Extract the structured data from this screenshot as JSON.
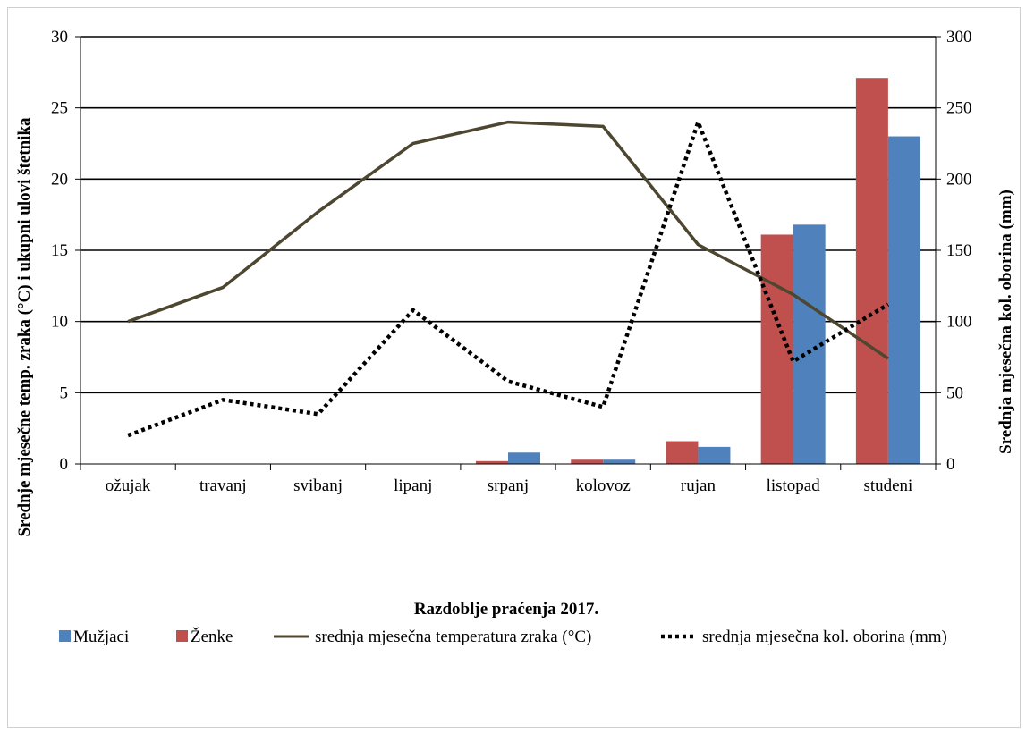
{
  "chart_data": {
    "type": "bar",
    "categories": [
      "ožujak",
      "travanj",
      "svibanj",
      "lipanj",
      "srpanj",
      "kolovoz",
      "rujan",
      "listopad",
      "studeni"
    ],
    "xlabel": "Razdoblje praćenja 2017.",
    "ylabel_left": "Srednje mjesečne temp. zraka (°C) i ukupni ulovi štetnika",
    "ylabel_right": "Srednja mjesečna kol. oborina (mm)",
    "ylim_left": [
      0,
      30
    ],
    "ylim_right": [
      0,
      300
    ],
    "yticks_left": [
      "0",
      "5",
      "10",
      "15",
      "20",
      "25",
      "30"
    ],
    "yticks_right": [
      "0",
      "50",
      "100",
      "150",
      "200",
      "250",
      "300"
    ],
    "grid": true,
    "legend_position": "bottom",
    "series": [
      {
        "name": "Mužjaci",
        "kind": "bar",
        "axis": "left",
        "color": "#4f81bd",
        "values": [
          0,
          0,
          0,
          0,
          0.8,
          0.3,
          1.2,
          16.8,
          23.0
        ]
      },
      {
        "name": "Ženke",
        "kind": "bar",
        "axis": "left",
        "color": "#c0504d",
        "values": [
          0,
          0,
          0,
          0,
          0.2,
          0.3,
          1.6,
          16.1,
          27.1
        ]
      },
      {
        "name": "srednja mjesečna temperatura zraka (°C)",
        "kind": "line",
        "axis": "left",
        "color": "#4d4630",
        "style": "solid",
        "values": [
          10.0,
          12.4,
          17.7,
          22.5,
          24.0,
          23.7,
          15.4,
          11.9,
          7.4
        ]
      },
      {
        "name": "srednja mjesečna kol. oborina (mm)",
        "kind": "line",
        "axis": "right",
        "color": "#000000",
        "style": "dotted",
        "values": [
          20,
          45,
          35,
          108,
          58,
          40,
          240,
          72,
          112
        ]
      }
    ],
    "legend_order": [
      "Mužjaci",
      "Ženke",
      "srednja mjesečna temperatura zraka (°C)",
      "srednja mjesečna kol. oborina (mm)"
    ]
  }
}
